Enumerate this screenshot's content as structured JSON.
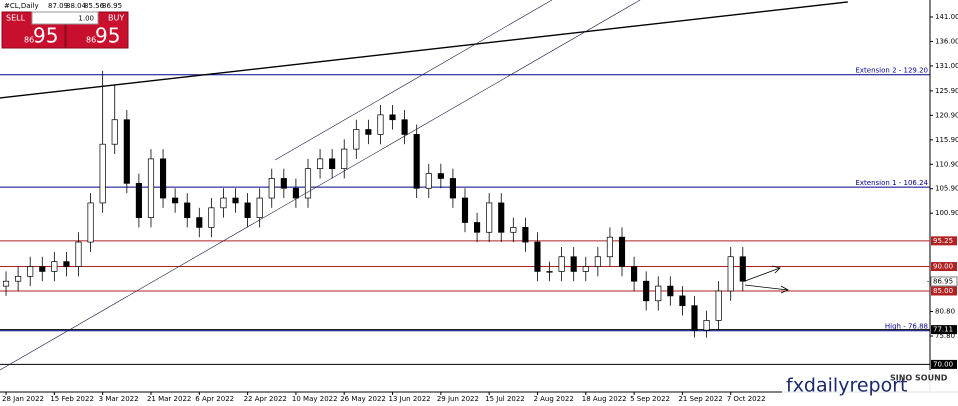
{
  "chart_data": {
    "type": "candlestick",
    "ylim": [
      64.36,
      144.47
    ],
    "xlim": [
      -0.5,
      76.5
    ],
    "yticks": [
      {
        "value": 141,
        "label": "141.00"
      },
      {
        "value": 136,
        "label": "136.00"
      },
      {
        "value": 131,
        "label": "131.00"
      },
      {
        "value": 125.9,
        "label": "125.90"
      },
      {
        "value": 120.9,
        "label": "120.90"
      },
      {
        "value": 115.9,
        "label": "115.90"
      },
      {
        "value": 110.9,
        "label": "110.90"
      },
      {
        "value": 105.9,
        "label": "105.90"
      },
      {
        "value": 100.9,
        "label": "100.90"
      },
      {
        "value": 80.8,
        "label": "80.80"
      },
      {
        "value": 75.8,
        "label": "75.80"
      }
    ],
    "xticks": [
      {
        "value": 0,
        "label": "28 Jan 2022"
      },
      {
        "value": 4,
        "label": "15 Feb 2022"
      },
      {
        "value": 8,
        "label": "3 Mar 2022"
      },
      {
        "value": 12,
        "label": "21 Mar 2022"
      },
      {
        "value": 16,
        "label": "6 Apr 2022"
      },
      {
        "value": 20,
        "label": "22 Apr 2022"
      },
      {
        "value": 24,
        "label": "10 May 2022"
      },
      {
        "value": 28,
        "label": "26 May 2022"
      },
      {
        "value": 32,
        "label": "13 Jun 2022"
      },
      {
        "value": 36,
        "label": "29 Jun 2022"
      },
      {
        "value": 40,
        "label": "15 Jul 2022"
      },
      {
        "value": 44,
        "label": "2 Aug 2022"
      },
      {
        "value": 48,
        "label": "18 Aug 2022"
      },
      {
        "value": 52,
        "label": "5 Sep 2022"
      },
      {
        "value": 56,
        "label": "21 Sep 2022"
      },
      {
        "value": 60,
        "label": "7 Oct 2022"
      }
    ],
    "open": [
      86,
      87,
      88,
      90,
      89,
      91,
      90,
      95,
      103,
      115,
      120,
      107,
      100,
      112,
      104,
      103,
      100,
      98,
      102,
      104,
      103,
      100,
      104,
      108,
      106,
      104,
      110,
      112,
      110,
      114,
      118,
      117,
      121,
      120,
      117,
      106,
      109,
      108,
      104,
      99,
      97,
      103,
      97,
      98,
      95,
      89,
      89,
      92,
      89,
      90,
      92,
      96,
      90,
      87,
      83,
      86,
      84,
      82,
      77,
      79,
      85,
      92
    ],
    "high": [
      89,
      90,
      92,
      92,
      93,
      93,
      97,
      105,
      130,
      127,
      122,
      109,
      114,
      114,
      106,
      105,
      102,
      104,
      106,
      106,
      105,
      106,
      110,
      110,
      108,
      112,
      114,
      114,
      116,
      120,
      120,
      123,
      123,
      122,
      119,
      111,
      111,
      110,
      106,
      101,
      105,
      105,
      100,
      100,
      97,
      91,
      94,
      94,
      92,
      94,
      98,
      98,
      92,
      89,
      88,
      88,
      86,
      84,
      81,
      87,
      94,
      94
    ],
    "low": [
      84,
      85,
      86,
      87,
      87,
      88,
      88,
      93,
      101,
      113,
      105,
      98,
      98,
      102,
      101,
      98,
      96,
      96,
      100,
      101,
      98,
      98,
      102,
      104,
      102,
      102,
      108,
      108,
      108,
      112,
      115,
      115,
      118,
      115,
      104,
      104,
      106,
      102,
      97,
      95,
      95,
      95,
      95,
      93,
      87,
      87,
      87,
      87,
      87,
      88,
      90,
      88,
      85,
      81,
      81,
      82,
      80,
      75.5,
      75.5,
      77,
      83,
      85
    ],
    "close": [
      87,
      88,
      90,
      89,
      91,
      90,
      95,
      103,
      115,
      120,
      107,
      100,
      112,
      104,
      103,
      100,
      98,
      102,
      104,
      103,
      100,
      104,
      108,
      106,
      104,
      110,
      112,
      110,
      114,
      118,
      117,
      121,
      120,
      117,
      106,
      109,
      108,
      104,
      99,
      97,
      103,
      97,
      98,
      95,
      89,
      89,
      92,
      89,
      90,
      92,
      96,
      90,
      87,
      83,
      86,
      84,
      82,
      77,
      79,
      85,
      92,
      87
    ],
    "levels": [
      {
        "value": 129.2,
        "text": "Extension 2 - 129.20",
        "color": "#00008b"
      },
      {
        "value": 106.24,
        "text": "Extension 1 - 106.24",
        "color": "#00008b"
      },
      {
        "value": 95.25,
        "label": "95.25",
        "color": "#b22222"
      },
      {
        "value": 90,
        "label": "90.00",
        "color": "#b22222"
      },
      {
        "value": 85,
        "label": "85.00",
        "color": "#b22222"
      },
      {
        "value": 76.88,
        "text": "High - 76.88",
        "color": "#00008b"
      },
      {
        "value": 77.11,
        "label": "77.11",
        "color": "#000000"
      },
      {
        "value": 70,
        "label": "70.00",
        "color": "#000000"
      }
    ],
    "current_price": {
      "value": 86.95,
      "label": "86.95",
      "color": "#808080"
    },
    "trendlines": [
      {
        "x": [
          -0.5,
          69.7
        ],
        "y": [
          124.45,
          144.07
        ],
        "color": "#000000",
        "width": 1.4
      },
      {
        "x": [
          22.27,
          45.2
        ],
        "y": [
          111.77,
          144.47
        ],
        "color": "#1a1a4a",
        "width": 0.6
      },
      {
        "x": [
          -0.5,
          52.5
        ],
        "y": [
          68.86,
          144.47
        ],
        "color": "#1a1a4a",
        "width": 0.6
      }
    ]
  },
  "trade_panel": {
    "symbol": "#CL,Daily",
    "quote": [
      "87.09",
      "88.04",
      "85.56",
      "86.95"
    ],
    "lot": "1.00",
    "sell_label": "SELL",
    "buy_label": "BUY",
    "sell_major": "86",
    "sell_minor": "95",
    "buy_major": "86",
    "buy_minor": "95"
  },
  "watermark": {
    "site": "fxdailyreport",
    "brand": "SINO SOUND"
  }
}
